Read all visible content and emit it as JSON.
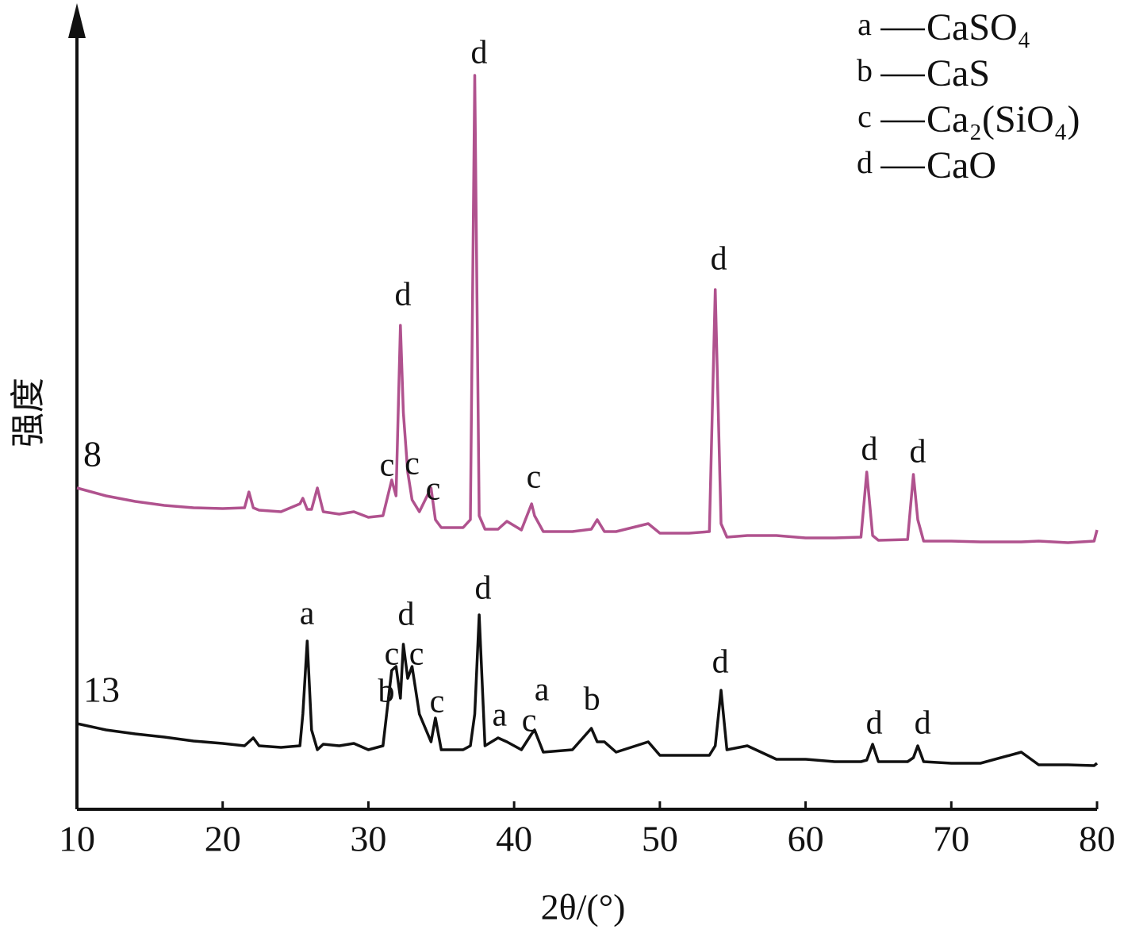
{
  "chart_data": {
    "type": "line",
    "x_label": "2θ/(°)",
    "y_label": "强度",
    "xlim": [
      10,
      80
    ],
    "xticks": [
      10,
      20,
      30,
      40,
      50,
      60,
      70,
      80
    ],
    "ylim": [
      0,
      100
    ],
    "x": [
      10,
      12,
      14,
      16,
      18,
      20,
      21.5,
      21.8,
      22.1,
      22.5,
      24,
      25.3,
      25.5,
      25.8,
      26.1,
      26.5,
      26.9,
      28,
      29,
      30,
      31,
      31.6,
      31.9,
      32.2,
      32.4,
      32.7,
      33,
      33.5,
      34.3,
      34.6,
      35,
      36.5,
      37.0,
      37.3,
      37.6,
      38,
      38.9,
      39.5,
      40.5,
      41.2,
      41.4,
      42,
      44,
      45.3,
      45.7,
      46.2,
      47,
      49.2,
      50,
      52,
      53.4,
      53.8,
      54.2,
      54.6,
      56,
      58,
      60,
      62,
      63.8,
      64.2,
      64.6,
      65,
      67,
      67.4,
      67.7,
      68.1,
      70,
      72,
      74.8,
      76,
      78,
      79.8,
      80
    ],
    "series": [
      {
        "name": "8",
        "color": "#b0528e",
        "values": [
          40.5,
          39.5,
          38.8,
          38.3,
          38.0,
          37.9,
          38.0,
          40.0,
          38.0,
          37.7,
          37.5,
          38.5,
          39.2,
          37.8,
          37.8,
          40.5,
          37.5,
          37.2,
          37.5,
          36.8,
          37.0,
          41.5,
          39.5,
          61.0,
          50.0,
          42.5,
          39.0,
          37.5,
          40.5,
          36.5,
          35.5,
          35.5,
          36.5,
          92.5,
          37.0,
          35.3,
          35.3,
          36.3,
          35.2,
          38.5,
          37.0,
          35.0,
          35.0,
          35.3,
          36.5,
          35.0,
          35.0,
          36.0,
          34.8,
          34.8,
          35.0,
          65.5,
          36.0,
          34.3,
          34.5,
          34.5,
          34.2,
          34.2,
          34.3,
          42.5,
          34.5,
          33.9,
          34.0,
          42.2,
          36.5,
          33.8,
          33.8,
          33.7,
          33.7,
          33.8,
          33.6,
          33.8,
          35.2
        ]
      },
      {
        "name": "13",
        "color": "#111111",
        "values": [
          10.8,
          10.0,
          9.5,
          9.1,
          8.6,
          8.3,
          8.0,
          8.5,
          9.0,
          8.0,
          7.8,
          8.0,
          12.0,
          21.2,
          10.0,
          7.5,
          8.2,
          8.0,
          8.3,
          7.5,
          8.0,
          17.5,
          18.0,
          14.0,
          20.8,
          16.5,
          18.0,
          12.0,
          8.5,
          11.5,
          7.5,
          7.5,
          8.0,
          12.0,
          24.5,
          8.0,
          9.0,
          8.5,
          7.5,
          9.5,
          10.0,
          7.2,
          7.5,
          10.2,
          8.5,
          8.5,
          7.2,
          8.5,
          6.8,
          6.8,
          6.8,
          8.0,
          15.0,
          7.5,
          8.0,
          6.3,
          6.3,
          6.0,
          6.0,
          6.2,
          8.2,
          6.0,
          6.0,
          6.5,
          8.0,
          6.0,
          5.8,
          5.8,
          7.2,
          5.6,
          5.6,
          5.5,
          5.8
        ]
      }
    ],
    "annotations": [
      {
        "text": "d",
        "x": 32.37,
        "y": 64.5
      },
      {
        "text": "c",
        "x": 31.28,
        "y": 43
      },
      {
        "text": "c",
        "x": 33.0,
        "y": 43.2
      },
      {
        "text": "c",
        "x": 34.44,
        "y": 40
      },
      {
        "text": "d",
        "x": 37.6,
        "y": 95
      },
      {
        "text": "c",
        "x": 41.35,
        "y": 41.5
      },
      {
        "text": "d",
        "x": 54.04,
        "y": 69
      },
      {
        "text": "d",
        "x": 64.38,
        "y": 45
      },
      {
        "text": "d",
        "x": 67.7,
        "y": 44.7
      },
      {
        "text": "a",
        "x": 25.79,
        "y": 24.3
      },
      {
        "text": "c",
        "x": 31.61,
        "y": 19.2
      },
      {
        "text": "d",
        "x": 32.59,
        "y": 24.2
      },
      {
        "text": "c",
        "x": 33.3,
        "y": 19.2
      },
      {
        "text": "b",
        "x": 31.23,
        "y": 14.5
      },
      {
        "text": "c",
        "x": 34.71,
        "y": 13.2
      },
      {
        "text": "d",
        "x": 37.87,
        "y": 27.5
      },
      {
        "text": "a",
        "x": 39.0,
        "y": 11.5
      },
      {
        "text": "a",
        "x": 41.9,
        "y": 14.7
      },
      {
        "text": "c",
        "x": 41.03,
        "y": 10.8
      },
      {
        "text": "b",
        "x": 45.33,
        "y": 13.5
      },
      {
        "text": "d",
        "x": 54.15,
        "y": 18.2
      },
      {
        "text": "d",
        "x": 64.71,
        "y": 10.5
      },
      {
        "text": "d",
        "x": 68.03,
        "y": 10.5
      }
    ],
    "legend": [
      {
        "key": "a",
        "label": "CaSO₄"
      },
      {
        "key": "b",
        "label": "CaS"
      },
      {
        "key": "c",
        "label": "Ca₂(SiO₄)"
      },
      {
        "key": "d",
        "label": "CaO"
      }
    ]
  }
}
